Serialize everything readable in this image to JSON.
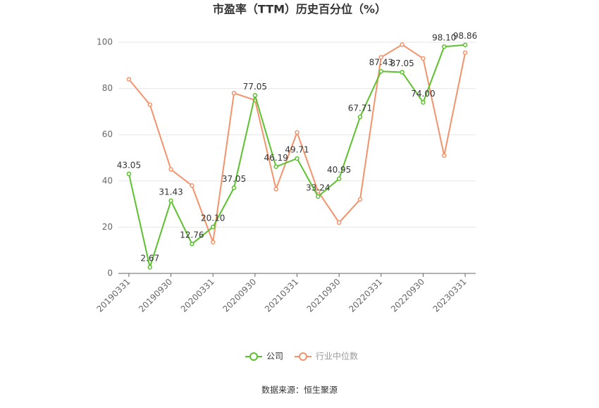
{
  "chart_data": {
    "type": "line",
    "title": "市盈率（TTM）历史百分位（%）",
    "source": "数据来源：恒生聚源",
    "categories": [
      "20190331",
      null,
      "20190930",
      null,
      "20200331",
      null,
      "20200930",
      null,
      "20210331",
      null,
      "20210930",
      null,
      "20220331",
      null,
      "20220930",
      null,
      "20230331"
    ],
    "series": [
      {
        "name": "公司",
        "color": "#5cc12e",
        "values": [
          43.05,
          2.67,
          31.43,
          12.76,
          20.1,
          37.05,
          77.05,
          46.19,
          49.71,
          33.24,
          40.95,
          67.71,
          87.43,
          87.05,
          74,
          98.1,
          98.86
        ],
        "value_labels": [
          "43.05",
          "2.67",
          "31.43",
          "12.76",
          "20.10",
          "37.05",
          "77.05",
          "46.19",
          "49.71",
          "33.24",
          "40.95",
          "67.71",
          "87.43",
          "87.05",
          "74.00",
          "98.10",
          "98.86"
        ]
      },
      {
        "name": "行业中位数",
        "color": "#f4936b",
        "values": [
          84,
          73,
          45,
          38,
          13.5,
          78,
          75,
          36.5,
          61,
          35.5,
          22,
          32,
          93.5,
          99,
          93,
          51,
          95.5
        ]
      }
    ],
    "ylim": [
      0,
      100
    ],
    "yticks": [
      0,
      20,
      40,
      60,
      80,
      100
    ],
    "grid": true
  }
}
